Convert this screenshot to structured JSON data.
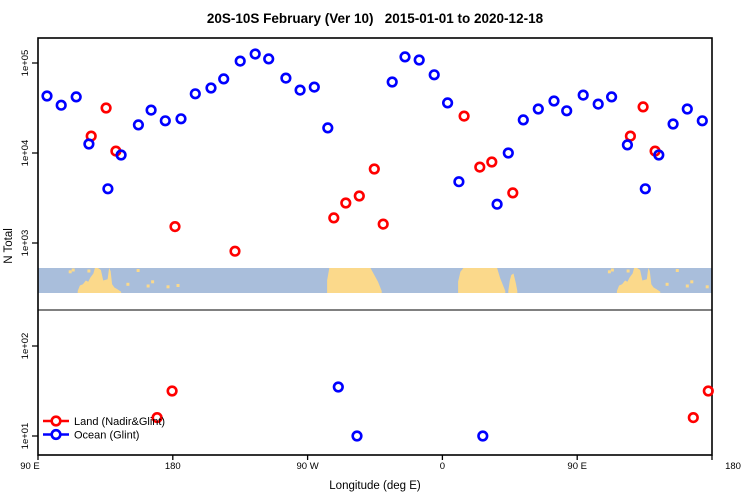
{
  "title": "20S-10S February (Ver 10)   2015-01-01 to 2020-12-18",
  "axes": {
    "y_label": "N Total",
    "x_label": "Longitude (deg E)",
    "y_ticks": [
      "1e+05",
      "1e+04",
      "1e+03",
      "1e+02",
      "1e+01"
    ],
    "x_ticks": [
      "90 E",
      "180",
      "90 W",
      "0",
      "90 E",
      "180"
    ]
  },
  "legend": [
    {
      "label": "Land (Nadir&Glint)",
      "color": "#ff0000"
    },
    {
      "label": "Ocean (Glint)",
      "color": "#0000ff"
    }
  ],
  "chart_data": {
    "type": "scatter",
    "title": "20S-10S February (Ver 10)   2015-01-01 to 2020-12-18",
    "xlabel": "Longitude (deg E)",
    "ylabel": "N Total",
    "x_axis": {
      "tick_labels": [
        "90 E",
        "180",
        "90 W",
        "0",
        "90 E",
        "180"
      ],
      "tick_lons": [
        90,
        180,
        270,
        360,
        450,
        540
      ],
      "range_deg_extended": [
        90,
        540
      ],
      "note": "longitude axis wraps; data from 90E-180 repeats at right"
    },
    "y_axis": {
      "scale": "log10",
      "tick_labels": [
        "1e+05",
        "1e+04",
        "1e+03",
        "1e+02",
        "1e+01"
      ],
      "tick_values": [
        100000,
        10000,
        1000,
        100,
        10
      ]
    },
    "series": [
      {
        "name": "Land (Nadir&Glint)",
        "color": "#ff0000",
        "points": [
          [
            125.5,
            15400
          ],
          [
            135.5,
            31600
          ],
          [
            142,
            10500
          ],
          [
            169.5,
            16
          ],
          [
            179.5,
            31.6
          ],
          [
            181.5,
            1520
          ],
          [
            221.5,
            810
          ],
          [
            287.5,
            1900
          ],
          [
            295.5,
            2780
          ],
          [
            304.5,
            3330
          ],
          [
            314.5,
            6640
          ],
          [
            320.5,
            1620
          ],
          [
            374.5,
            25700
          ],
          [
            385,
            6980
          ],
          [
            393,
            7940
          ],
          [
            407,
            3600
          ],
          [
            485.5,
            15400
          ],
          [
            494,
            32500
          ],
          [
            502,
            10500
          ],
          [
            527.5,
            16
          ],
          [
            537.5,
            31.6
          ]
        ]
      },
      {
        "name": "Ocean (Glint)",
        "color": "#0000ff",
        "points": [
          [
            96,
            43000
          ],
          [
            105.5,
            34000
          ],
          [
            115.5,
            42000
          ],
          [
            124,
            12600
          ],
          [
            136.7,
            4000
          ],
          [
            145.5,
            9500
          ],
          [
            157,
            20500
          ],
          [
            165.5,
            30000
          ],
          [
            175,
            22800
          ],
          [
            185.5,
            24000
          ],
          [
            195,
            45500
          ],
          [
            205.5,
            52800
          ],
          [
            214,
            66500
          ],
          [
            225,
            105000
          ],
          [
            235,
            126000
          ],
          [
            244,
            111000
          ],
          [
            255.5,
            68000
          ],
          [
            265,
            50000
          ],
          [
            274.5,
            54000
          ],
          [
            283.5,
            19000
          ],
          [
            290.5,
            35
          ],
          [
            303,
            10
          ],
          [
            326.5,
            61500
          ],
          [
            335,
            117000
          ],
          [
            344.5,
            108000
          ],
          [
            354.5,
            74000
          ],
          [
            363.5,
            36000
          ],
          [
            371,
            4800
          ],
          [
            387,
            10
          ],
          [
            396.5,
            2700
          ],
          [
            404,
            10000
          ],
          [
            414,
            23300
          ],
          [
            424,
            30800
          ],
          [
            434.5,
            37800
          ],
          [
            443,
            29400
          ],
          [
            454,
            44000
          ],
          [
            464,
            34900
          ],
          [
            473,
            42000
          ],
          [
            483.5,
            12300
          ],
          [
            495.5,
            4000
          ],
          [
            504.5,
            9500
          ],
          [
            514,
            21000
          ],
          [
            523.5,
            30800
          ],
          [
            533.5,
            22800
          ]
        ]
      }
    ],
    "map_strip": {
      "lat_band": "20S-10S",
      "ocean_color": "#a9bedb",
      "land_color": "#fbd98b",
      "land_segments": [
        {
          "name": "australia",
          "outline": [
            [
              116.5,
              0.08
            ],
            [
              118,
              0.3
            ],
            [
              120,
              0.35
            ],
            [
              122,
              0.5
            ],
            [
              123.5,
              0.45
            ],
            [
              125,
              0.62
            ],
            [
              127,
              0.78
            ],
            [
              128,
              1
            ],
            [
              130,
              1
            ],
            [
              132,
              0.92
            ],
            [
              133.5,
              0.5
            ],
            [
              136.5,
              0.55
            ],
            [
              137.5,
              1
            ],
            [
              138.5,
              0.88
            ],
            [
              139.5,
              0.35
            ],
            [
              141,
              0.22
            ],
            [
              143,
              0.15
            ],
            [
              145.5,
              0.05
            ]
          ]
        },
        {
          "name": "south-america",
          "outline": [
            [
              283,
              0.5
            ],
            [
              284.5,
              1
            ],
            [
              312,
              1
            ],
            [
              314.5,
              0.72
            ],
            [
              317,
              0.45
            ],
            [
              319.5,
              0.08
            ]
          ]
        },
        {
          "name": "africa",
          "outline": [
            [
              370.5,
              0.45
            ],
            [
              372,
              0.85
            ],
            [
              374,
              1
            ],
            [
              396.5,
              1
            ],
            [
              398.5,
              0.6
            ],
            [
              400.5,
              0.3
            ],
            [
              402,
              0.08
            ]
          ]
        },
        {
          "name": "madagascar",
          "outline": [
            [
              404,
              0.08
            ],
            [
              405,
              0.5
            ],
            [
              406,
              0.72
            ],
            [
              407.5,
              0.78
            ],
            [
              409,
              0.4
            ],
            [
              410,
              0.08
            ]
          ]
        }
      ],
      "islands": [
        {
          "lon": 111.5,
          "frac": 0.85
        },
        {
          "lon": 113.5,
          "frac": 0.92
        },
        {
          "lon": 124,
          "frac": 0.88
        },
        {
          "lon": 150,
          "frac": 0.35
        },
        {
          "lon": 156.8,
          "frac": 0.9
        },
        {
          "lon": 163.5,
          "frac": 0.28
        },
        {
          "lon": 166.5,
          "frac": 0.45
        },
        {
          "lon": 176.8,
          "frac": 0.25
        },
        {
          "lon": 183.5,
          "frac": 0.3
        }
      ]
    }
  }
}
